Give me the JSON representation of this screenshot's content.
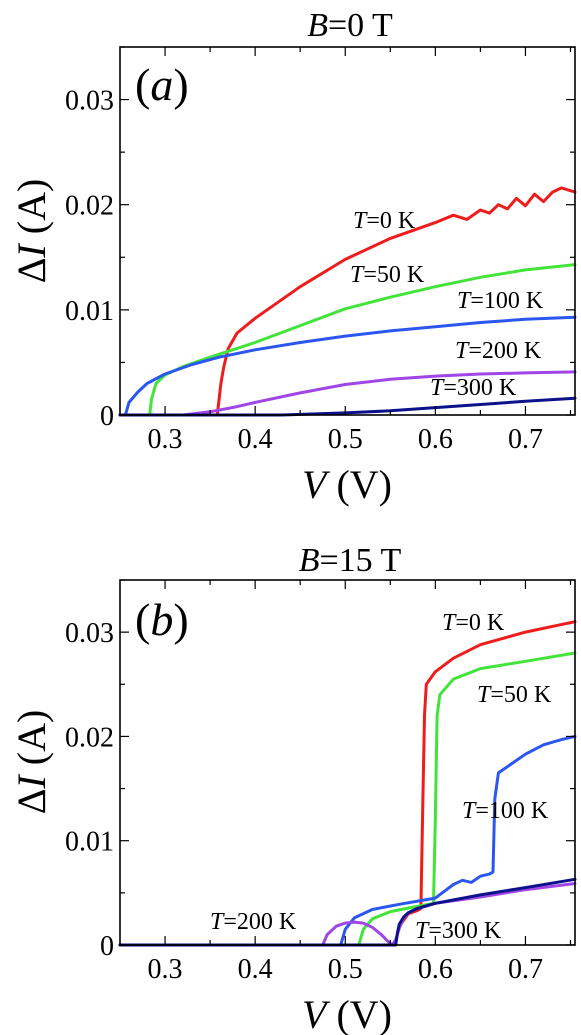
{
  "chart_data": [
    {
      "type": "line",
      "title": "B=0 T",
      "title_var": "B",
      "title_rest": "=0 T",
      "panel_label": "(a)",
      "panel_letter": "a",
      "xlabel": "V (V)",
      "xlabel_var": "V",
      "xlabel_unit": "(V)",
      "ylabel": "ΔI (A)",
      "ylabel_delta": "Δ",
      "ylabel_var": "I",
      "ylabel_unit": "(A)",
      "xlim": [
        0.25,
        0.755
      ],
      "ylim": [
        0,
        0.035
      ],
      "xticks": [
        0.3,
        0.4,
        0.5,
        0.6,
        0.7
      ],
      "xtick_labels": [
        "0.3",
        "0.4",
        "0.5",
        "0.6",
        "0.7"
      ],
      "yticks": [
        0,
        0.01,
        0.02,
        0.03
      ],
      "ytick_labels": [
        "0",
        "0.01",
        "0.02",
        "0.03"
      ],
      "series": [
        {
          "name": "T=0 K",
          "var": "T",
          "rest": "=0 K",
          "color": "#ee1c1c",
          "x": [
            0.25,
            0.358,
            0.36,
            0.362,
            0.365,
            0.37,
            0.38,
            0.4,
            0.45,
            0.5,
            0.55,
            0.6,
            0.62,
            0.635,
            0.65,
            0.66,
            0.67,
            0.68,
            0.69,
            0.7,
            0.71,
            0.72,
            0.73,
            0.74,
            0.755
          ],
          "y": [
            0,
            0,
            0.0015,
            0.003,
            0.0045,
            0.0063,
            0.0078,
            0.0092,
            0.0122,
            0.0148,
            0.0168,
            0.0183,
            0.019,
            0.0186,
            0.0195,
            0.0192,
            0.02,
            0.0196,
            0.0206,
            0.0199,
            0.021,
            0.0203,
            0.0212,
            0.0216,
            0.0212
          ]
        },
        {
          "name": "T=50 K",
          "var": "T",
          "rest": "=50 K",
          "color": "#43e43a",
          "x": [
            0.25,
            0.283,
            0.285,
            0.29,
            0.3,
            0.32,
            0.35,
            0.4,
            0.45,
            0.5,
            0.55,
            0.6,
            0.65,
            0.7,
            0.755
          ],
          "y": [
            0,
            0,
            0.0015,
            0.003,
            0.0038,
            0.0046,
            0.0055,
            0.0069,
            0.0085,
            0.0101,
            0.0112,
            0.0122,
            0.0131,
            0.0138,
            0.0143
          ]
        },
        {
          "name": "T=100 K",
          "var": "T",
          "rest": "=100 K",
          "color": "#2b57f0",
          "x": [
            0.25,
            0.256,
            0.26,
            0.27,
            0.28,
            0.3,
            0.33,
            0.36,
            0.4,
            0.45,
            0.5,
            0.55,
            0.6,
            0.65,
            0.7,
            0.755
          ],
          "y": [
            0,
            0,
            0.0012,
            0.0022,
            0.003,
            0.0039,
            0.0048,
            0.0055,
            0.0062,
            0.0069,
            0.0075,
            0.008,
            0.0084,
            0.0088,
            0.0091,
            0.0093
          ]
        },
        {
          "name": "T=200 K",
          "var": "T",
          "rest": "=200 K",
          "color": "#a046e6",
          "x": [
            0.25,
            0.32,
            0.35,
            0.38,
            0.4,
            0.45,
            0.5,
            0.55,
            0.6,
            0.65,
            0.7,
            0.755
          ],
          "y": [
            0,
            0,
            0.0003,
            0.0008,
            0.0012,
            0.0021,
            0.0029,
            0.0034,
            0.0037,
            0.0039,
            0.004,
            0.0041
          ]
        },
        {
          "name": "T=300 K",
          "var": "T",
          "rest": "=300 K",
          "color": "#0b128c",
          "x": [
            0.25,
            0.43,
            0.5,
            0.55,
            0.6,
            0.65,
            0.7,
            0.755
          ],
          "y": [
            0,
            0,
            0.0002,
            0.0004,
            0.0007,
            0.001,
            0.0013,
            0.0016
          ]
        }
      ]
    },
    {
      "type": "line",
      "title": "B=15 T",
      "title_var": "B",
      "title_rest": "=15 T",
      "panel_label": "(b)",
      "panel_letter": "b",
      "xlabel": "V (V)",
      "xlabel_var": "V",
      "xlabel_unit": "(V)",
      "ylabel": "ΔI (A)",
      "ylabel_delta": "Δ",
      "ylabel_var": "I",
      "ylabel_unit": "(A)",
      "xlim": [
        0.25,
        0.755
      ],
      "ylim": [
        0,
        0.035
      ],
      "xticks": [
        0.3,
        0.4,
        0.5,
        0.6,
        0.7
      ],
      "xtick_labels": [
        "0.3",
        "0.4",
        "0.5",
        "0.6",
        "0.7"
      ],
      "yticks": [
        0,
        0.01,
        0.02,
        0.03
      ],
      "ytick_labels": [
        "0",
        "0.01",
        "0.02",
        "0.03"
      ],
      "series": [
        {
          "name": "T=0 K",
          "var": "T",
          "rest": "=0 K",
          "color": "#ee1c1c",
          "x": [
            0.25,
            0.555,
            0.56,
            0.57,
            0.58,
            0.584,
            0.586,
            0.588,
            0.59,
            0.6,
            0.62,
            0.65,
            0.7,
            0.755
          ],
          "y": [
            0,
            0,
            0.0018,
            0.003,
            0.0033,
            0.0035,
            0.013,
            0.022,
            0.025,
            0.0262,
            0.0275,
            0.0288,
            0.03,
            0.031
          ]
        },
        {
          "name": "T=50 K",
          "var": "T",
          "rest": "=50 K",
          "color": "#43e43a",
          "x": [
            0.25,
            0.515,
            0.52,
            0.53,
            0.55,
            0.58,
            0.598,
            0.6,
            0.602,
            0.605,
            0.62,
            0.65,
            0.7,
            0.755
          ],
          "y": [
            0,
            0,
            0.0015,
            0.0025,
            0.0032,
            0.0037,
            0.004,
            0.012,
            0.022,
            0.024,
            0.0255,
            0.0265,
            0.0272,
            0.028
          ]
        },
        {
          "name": "T=100 K",
          "var": "T",
          "rest": "=100 K",
          "color": "#2b57f0",
          "x": [
            0.25,
            0.495,
            0.5,
            0.51,
            0.53,
            0.56,
            0.6,
            0.62,
            0.63,
            0.64,
            0.65,
            0.66,
            0.664,
            0.666,
            0.67,
            0.7,
            0.72,
            0.74,
            0.755
          ],
          "y": [
            0,
            0,
            0.0015,
            0.0026,
            0.0034,
            0.0039,
            0.0045,
            0.0058,
            0.0062,
            0.006,
            0.0066,
            0.0068,
            0.007,
            0.014,
            0.0165,
            0.0183,
            0.0192,
            0.0197,
            0.02
          ]
        },
        {
          "name": "T=200 K",
          "var": "T",
          "rest": "=200 K",
          "color": "#a046e6",
          "x": [
            0.25,
            0.475,
            0.48,
            0.49,
            0.5,
            0.51,
            0.52,
            0.53,
            0.54,
            0.548,
            0.552,
            0.556,
            0.56,
            0.565,
            0.57,
            0.58,
            0.6,
            0.65,
            0.7,
            0.755
          ],
          "y": [
            0,
            0,
            0.001,
            0.0018,
            0.0021,
            0.0022,
            0.0021,
            0.0017,
            0.001,
            0.0003,
            0,
            0.0005,
            0.0016,
            0.0026,
            0.0031,
            0.0035,
            0.004,
            0.0046,
            0.0053,
            0.0059
          ]
        },
        {
          "name": "T=300 K",
          "var": "T",
          "rest": "=300 K",
          "color": "#0b128c",
          "x": [
            0.25,
            0.556,
            0.558,
            0.56,
            0.565,
            0.57,
            0.58,
            0.6,
            0.65,
            0.7,
            0.755
          ],
          "y": [
            0,
            0,
            0.0012,
            0.002,
            0.0027,
            0.0031,
            0.0035,
            0.004,
            0.0048,
            0.0055,
            0.0063
          ]
        }
      ]
    }
  ]
}
